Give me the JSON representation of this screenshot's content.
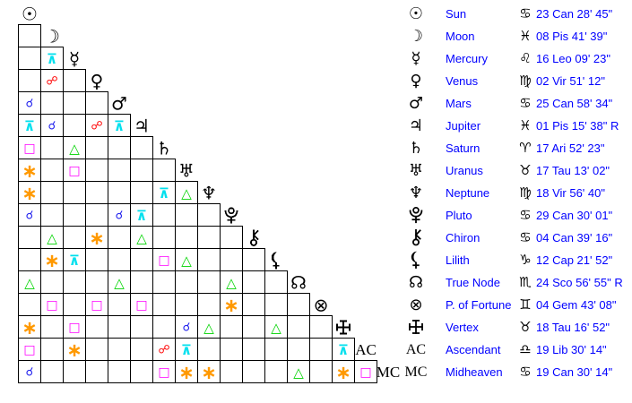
{
  "app": {
    "background": "#ffffff",
    "text_color": "#0000ff"
  },
  "aspect_legend": {
    "conjunction": {
      "glyph": "☌",
      "color": "#2222ee"
    },
    "opposition": {
      "glyph": "☍",
      "color": "#ff0000"
    },
    "trine": {
      "glyph": "△",
      "color": "#00d400"
    },
    "square": {
      "glyph": "□",
      "color": "#ff00ff"
    },
    "sextile": {
      "glyph": "∗",
      "color": "#ff9900"
    },
    "quincunx": {
      "glyph": "⊼",
      "color": "#00e0ee"
    }
  },
  "planets": [
    {
      "name": "Sun",
      "glyph": "☉",
      "glyph_kind": "symbol",
      "sign": "Cancer",
      "sign_glyph": "♋",
      "position": "23 Can 28' 45\""
    },
    {
      "name": "Moon",
      "glyph": "☽",
      "glyph_kind": "symbol",
      "sign": "Pisces",
      "sign_glyph": "♓",
      "position": "08 Pis 41' 39\""
    },
    {
      "name": "Mercury",
      "glyph": "☿",
      "glyph_kind": "symbol",
      "sign": "Leo",
      "sign_glyph": "♌",
      "position": "16 Leo 09' 23\""
    },
    {
      "name": "Venus",
      "glyph": "♀",
      "glyph_kind": "symbol",
      "sign": "Virgo",
      "sign_glyph": "♍",
      "position": "02 Vir 51' 12\""
    },
    {
      "name": "Mars",
      "glyph": "♂",
      "glyph_kind": "symbol",
      "sign": "Cancer",
      "sign_glyph": "♋",
      "position": "25 Can 58' 34\""
    },
    {
      "name": "Jupiter",
      "glyph": "♃",
      "glyph_kind": "symbol",
      "sign": "Pisces",
      "sign_glyph": "♓",
      "position": "01 Pis 15' 38\" R"
    },
    {
      "name": "Saturn",
      "glyph": "♄",
      "glyph_kind": "symbol",
      "sign": "Aries",
      "sign_glyph": "♈",
      "position": "17 Ari 52' 23\""
    },
    {
      "name": "Uranus",
      "glyph": "♅",
      "glyph_kind": "symbol",
      "sign": "Taurus",
      "sign_glyph": "♉",
      "position": "17 Tau 13' 02\""
    },
    {
      "name": "Neptune",
      "glyph": "♆",
      "glyph_kind": "symbol",
      "sign": "Virgo",
      "sign_glyph": "♍",
      "position": "18 Vir 56' 40\""
    },
    {
      "name": "Pluto",
      "glyph": "svg:pluto",
      "glyph_kind": "svg",
      "sign": "Cancer",
      "sign_glyph": "♋",
      "position": "29 Can 30' 01\""
    },
    {
      "name": "Chiron",
      "glyph": "svg:chiron",
      "glyph_kind": "svg",
      "sign": "Cancer",
      "sign_glyph": "♋",
      "position": "04 Can 39' 16\""
    },
    {
      "name": "Lilith",
      "glyph": "svg:lilith",
      "glyph_kind": "svg",
      "sign": "Capricorn",
      "sign_glyph": "♑",
      "position": "12 Cap 21' 52\""
    },
    {
      "name": "True Node",
      "glyph": "☊",
      "glyph_kind": "symbol",
      "sign": "Scorpio",
      "sign_glyph": "♏",
      "position": "24 Sco 56' 55\" R"
    },
    {
      "name": "P. of Fortune",
      "glyph": "⊗",
      "glyph_kind": "symbol",
      "sign": "Gemini",
      "sign_glyph": "♊",
      "position": "04 Gem 43' 08\""
    },
    {
      "name": "Vertex",
      "glyph": "svg:vertex",
      "glyph_kind": "svg",
      "sign": "Taurus",
      "sign_glyph": "♉",
      "position": "18 Tau 16' 52\""
    },
    {
      "name": "Ascendant",
      "glyph": "AC",
      "glyph_kind": "text",
      "sign": "Libra",
      "sign_glyph": "♎",
      "position": "19 Lib 30' 14\""
    },
    {
      "name": "Midheaven",
      "glyph": "MC",
      "glyph_kind": "text",
      "sign": "Cancer",
      "sign_glyph": "♋",
      "position": "19 Can 30' 14\""
    }
  ],
  "aspects": [
    {
      "row": 2,
      "col": 1,
      "type": "quincunx"
    },
    {
      "row": 3,
      "col": 1,
      "type": "opposition"
    },
    {
      "row": 4,
      "col": 0,
      "type": "conjunction"
    },
    {
      "row": 5,
      "col": 0,
      "type": "quincunx"
    },
    {
      "row": 5,
      "col": 1,
      "type": "conjunction"
    },
    {
      "row": 5,
      "col": 3,
      "type": "opposition"
    },
    {
      "row": 5,
      "col": 4,
      "type": "quincunx"
    },
    {
      "row": 6,
      "col": 0,
      "type": "square"
    },
    {
      "row": 6,
      "col": 2,
      "type": "trine"
    },
    {
      "row": 7,
      "col": 0,
      "type": "sextile"
    },
    {
      "row": 7,
      "col": 2,
      "type": "square"
    },
    {
      "row": 8,
      "col": 0,
      "type": "sextile"
    },
    {
      "row": 8,
      "col": 6,
      "type": "quincunx"
    },
    {
      "row": 8,
      "col": 7,
      "type": "trine"
    },
    {
      "row": 9,
      "col": 0,
      "type": "conjunction"
    },
    {
      "row": 9,
      "col": 4,
      "type": "conjunction"
    },
    {
      "row": 9,
      "col": 5,
      "type": "quincunx"
    },
    {
      "row": 10,
      "col": 1,
      "type": "trine"
    },
    {
      "row": 10,
      "col": 3,
      "type": "sextile"
    },
    {
      "row": 10,
      "col": 5,
      "type": "trine"
    },
    {
      "row": 11,
      "col": 1,
      "type": "sextile"
    },
    {
      "row": 11,
      "col": 2,
      "type": "quincunx"
    },
    {
      "row": 11,
      "col": 6,
      "type": "square"
    },
    {
      "row": 11,
      "col": 7,
      "type": "trine"
    },
    {
      "row": 12,
      "col": 0,
      "type": "trine"
    },
    {
      "row": 12,
      "col": 4,
      "type": "trine"
    },
    {
      "row": 12,
      "col": 9,
      "type": "trine"
    },
    {
      "row": 13,
      "col": 1,
      "type": "square"
    },
    {
      "row": 13,
      "col": 3,
      "type": "square"
    },
    {
      "row": 13,
      "col": 5,
      "type": "square"
    },
    {
      "row": 13,
      "col": 9,
      "type": "sextile"
    },
    {
      "row": 14,
      "col": 0,
      "type": "sextile"
    },
    {
      "row": 14,
      "col": 2,
      "type": "square"
    },
    {
      "row": 14,
      "col": 7,
      "type": "conjunction"
    },
    {
      "row": 14,
      "col": 8,
      "type": "trine"
    },
    {
      "row": 14,
      "col": 11,
      "type": "trine"
    },
    {
      "row": 15,
      "col": 0,
      "type": "square"
    },
    {
      "row": 15,
      "col": 2,
      "type": "sextile"
    },
    {
      "row": 15,
      "col": 6,
      "type": "opposition"
    },
    {
      "row": 15,
      "col": 7,
      "type": "quincunx"
    },
    {
      "row": 15,
      "col": 14,
      "type": "quincunx"
    },
    {
      "row": 16,
      "col": 0,
      "type": "conjunction"
    },
    {
      "row": 16,
      "col": 6,
      "type": "square"
    },
    {
      "row": 16,
      "col": 7,
      "type": "sextile"
    },
    {
      "row": 16,
      "col": 8,
      "type": "sextile"
    },
    {
      "row": 16,
      "col": 12,
      "type": "trine"
    },
    {
      "row": 16,
      "col": 14,
      "type": "sextile"
    },
    {
      "row": 16,
      "col": 15,
      "type": "square"
    }
  ]
}
